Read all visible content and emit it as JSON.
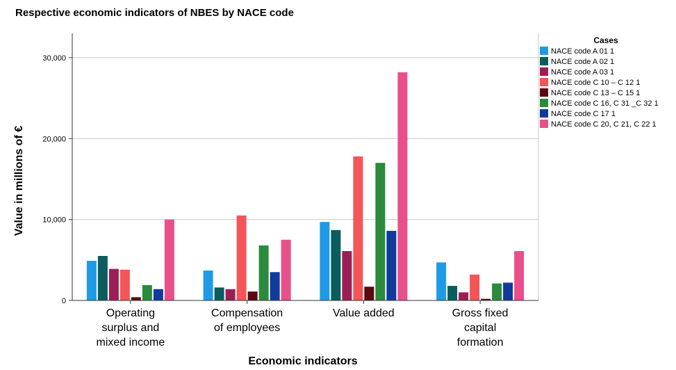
{
  "chart_data": {
    "type": "bar",
    "title": "Respective economic indicators of NBES by NACE code",
    "xlabel": "Economic indicators",
    "ylabel": "Value in millions of €",
    "ylim": [
      0,
      33000
    ],
    "yticks": [
      "0",
      "10,000",
      "20,000",
      "30,000"
    ],
    "ytick_values": [
      0,
      10000,
      20000,
      30000
    ],
    "grid": true,
    "legend_title": "Cases",
    "legend_position": "top-right",
    "categories": [
      [
        "Operating",
        "surplus and",
        "mixed income"
      ],
      [
        "Compensation",
        "of employees"
      ],
      [
        "Value added"
      ],
      [
        "Gross fixed",
        "capital",
        "formation"
      ]
    ],
    "series": [
      {
        "name": "NACE code A 01 1",
        "color": "#1f9be6",
        "values": [
          4900,
          3700,
          9700,
          4700
        ]
      },
      {
        "name": "NACE code A 02 1",
        "color": "#0b5d5d",
        "values": [
          5500,
          1600,
          8700,
          1800
        ]
      },
      {
        "name": "NACE code A 03 1",
        "color": "#9b1f55",
        "values": [
          3900,
          1400,
          6100,
          1000
        ]
      },
      {
        "name": "NACE code C 10 – C 12 1",
        "color": "#f45558",
        "values": [
          3800,
          10500,
          17800,
          3200
        ]
      },
      {
        "name": "NACE code C 13 – C 15 1",
        "color": "#5a0a12",
        "values": [
          400,
          1100,
          1700,
          200
        ]
      },
      {
        "name": "NACE code C 16, C 31 _C 32 1",
        "color": "#2a8b3c",
        "values": [
          1900,
          6800,
          17000,
          2100
        ]
      },
      {
        "name": "NACE code C 17 1",
        "color": "#103a9c",
        "values": [
          1400,
          3500,
          8600,
          2200
        ]
      },
      {
        "name": "NACE code C 20, C 21, C 22 1",
        "color": "#e8508c",
        "values": [
          10000,
          7500,
          28200,
          6100
        ]
      }
    ]
  }
}
